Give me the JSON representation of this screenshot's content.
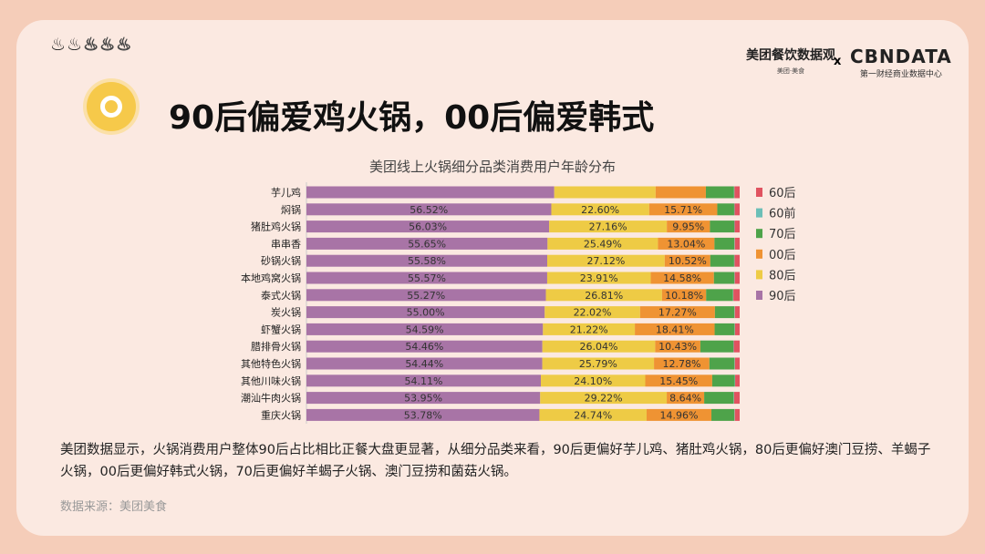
{
  "header": {
    "flames_on": 2,
    "flames_total": 5,
    "logo_meituan": "美团餐饮数据观",
    "logo_meituan_sub": "美团·美食",
    "logo_x": "x",
    "logo_cbn": "CBNDATA",
    "logo_cbn_sub": "第一财经商业数据中心"
  },
  "title": "90后偏爱鸡火锅，00后偏爱韩式",
  "description": "美团数据显示，火锅消费用户整体90后占比相比正餐大盘更显著，从细分品类来看，90后更偏好芋儿鸡、猪肚鸡火锅，80后更偏好澳门豆捞、羊蝎子火锅，00后更偏好韩式火锅，70后更偏好羊蝎子火锅、澳门豆捞和菌菇火锅。",
  "source": "数据来源：美团美食",
  "chart_data": {
    "type": "bar",
    "orientation": "horizontal",
    "stacked": true,
    "title": "美团线上火锅细分品类消费用户年龄分布",
    "categories": [
      "芋儿鸡",
      "焖锅",
      "猪肚鸡火锅",
      "串串香",
      "砂锅火锅",
      "本地鸡窝火锅",
      "泰式火锅",
      "炭火锅",
      "虾蟹火锅",
      "腊排骨火锅",
      "其他特色火锅",
      "其他川味火锅",
      "潮汕牛肉火锅",
      "重庆火锅"
    ],
    "legend": [
      "60后",
      "60前",
      "70后",
      "00后",
      "80后",
      "90后"
    ],
    "legend_position": "right",
    "xlim": [
      0,
      100
    ],
    "series": [
      {
        "name": "90后",
        "color": "#a874a6",
        "labeled": true,
        "values": [
          57.2,
          56.52,
          56.03,
          55.65,
          55.58,
          55.57,
          55.27,
          55.0,
          54.59,
          54.46,
          54.44,
          54.11,
          53.95,
          53.78
        ]
      },
      {
        "name": "80后",
        "color": "#eecb45",
        "labeled": true,
        "values": [
          23.4,
          22.6,
          27.16,
          25.49,
          27.12,
          23.91,
          26.81,
          22.02,
          21.22,
          26.04,
          25.79,
          24.1,
          29.22,
          24.74
        ]
      },
      {
        "name": "00后",
        "color": "#ef9333",
        "labeled": true,
        "values": [
          11.6,
          15.71,
          9.95,
          13.04,
          10.52,
          14.58,
          10.18,
          17.27,
          18.41,
          10.43,
          12.78,
          15.45,
          8.64,
          14.96
        ]
      },
      {
        "name": "70后",
        "color": "#4ea34a",
        "labeled": false,
        "values": [
          6.5,
          3.9,
          5.6,
          4.6,
          5.5,
          4.7,
          6.2,
          4.5,
          4.6,
          7.6,
          5.8,
          5.2,
          6.8,
          5.3
        ]
      },
      {
        "name": "60前",
        "color": "#6cbfb7",
        "labeled": false,
        "values": [
          0.1,
          0.1,
          0.1,
          0.1,
          0.1,
          0.1,
          0.1,
          0.1,
          0.1,
          0.1,
          0.1,
          0.1,
          0.1,
          0.1
        ]
      },
      {
        "name": "60后",
        "color": "#e05360",
        "labeled": false,
        "values": [
          1.2,
          1.17,
          1.16,
          1.12,
          1.18,
          1.14,
          1.44,
          1.11,
          1.08,
          1.37,
          1.09,
          1.04,
          1.29,
          1.12
        ]
      }
    ]
  }
}
